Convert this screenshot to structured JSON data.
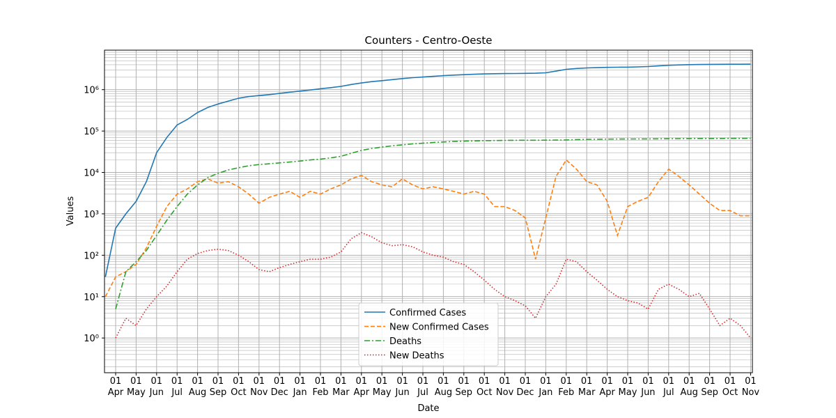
{
  "chart_data": {
    "type": "line",
    "title": "Counters - Centro-Oeste",
    "x_label": "Date",
    "y_label": "Values",
    "log_scale": true,
    "grid": true,
    "minor_grid": true,
    "legend": "lower center",
    "x": [
      "15\nMar",
      "01\nApr",
      "15\nApr",
      "01\nMay",
      "15\nMay",
      "01\nJun",
      "15\nJun",
      "01\nJul",
      "15\nJul",
      "01\nAug",
      "15\nAug",
      "01\nSep",
      "15\nSep",
      "01\nOct",
      "15\nOct",
      "01\nNov",
      "15\nNov",
      "01\nDec",
      "15\nDec",
      "01\nJan",
      "15\nJan",
      "01\nFeb",
      "15\nFeb",
      "01\nMar",
      "15\nMar",
      "01\nApr",
      "15\nApr",
      "01\nMay",
      "15\nMay",
      "01\nJun",
      "15\nJun",
      "01\nJul",
      "15\nJul",
      "01\nAug",
      "15\nAug",
      "01\nSep",
      "15\nSep",
      "01\nOct",
      "15\nOct",
      "01\nNov",
      "15\nNov",
      "01\nDec",
      "15\nDec",
      "01\nJan",
      "15\nJan",
      "01\nFeb",
      "15\nFeb",
      "01\nMar",
      "15\nMar",
      "01\nApr",
      "15\nApr",
      "01\nMay",
      "15\nMay",
      "01\nJun",
      "15\nJun",
      "01\nJul",
      "15\nJul",
      "01\nAug",
      "15\nAug",
      "01\nSep",
      "15\nSep",
      "01\nOct",
      "15\nOct",
      "01\nNov"
    ],
    "ylim": [
      0.145,
      9000000
    ],
    "yticks": [
      {
        "value": 1,
        "label": "10⁰"
      },
      {
        "value": 10,
        "label": "10¹"
      },
      {
        "value": 100,
        "label": "10²"
      },
      {
        "value": 1000,
        "label": "10³"
      },
      {
        "value": 10000,
        "label": "10⁴"
      },
      {
        "value": 100000,
        "label": "10⁵"
      },
      {
        "value": 1000000,
        "label": "10⁶"
      }
    ],
    "series": [
      {
        "name": "Confirmed Cases",
        "color": "#1f77b4",
        "style": "solid",
        "values": [
          30,
          450,
          1000,
          2000,
          6000,
          30000,
          70000,
          140000,
          190000,
          280000,
          370000,
          450000,
          530000,
          620000,
          680000,
          720000,
          760000,
          810000,
          870000,
          920000,
          980000,
          1050000,
          1120000,
          1200000,
          1330000,
          1450000,
          1560000,
          1650000,
          1750000,
          1850000,
          1950000,
          2020000,
          2100000,
          2180000,
          2250000,
          2300000,
          2350000,
          2400000,
          2430000,
          2450000,
          2460000,
          2480000,
          2500000,
          2550000,
          2800000,
          3100000,
          3250000,
          3350000,
          3400000,
          3450000,
          3480000,
          3500000,
          3550000,
          3620000,
          3750000,
          3880000,
          3950000,
          4020000,
          4050000,
          4080000,
          4100000,
          4110000,
          4120000,
          4130000
        ]
      },
      {
        "name": "New Confirmed Cases",
        "color": "#ff7f0e",
        "style": "dashed",
        "values": [
          10,
          30,
          40,
          60,
          150,
          500,
          1500,
          3000,
          4000,
          6000,
          7000,
          5500,
          6000,
          4500,
          3000,
          1800,
          2500,
          3000,
          3500,
          2500,
          3500,
          3000,
          4000,
          5000,
          7000,
          8500,
          6000,
          5000,
          4500,
          7000,
          5000,
          4000,
          4500,
          4000,
          3500,
          3000,
          3500,
          3000,
          1500,
          1500,
          1200,
          800,
          80,
          800,
          8000,
          20000,
          12000,
          6000,
          5000,
          2000,
          300,
          1500,
          2000,
          2500,
          6000,
          12000,
          8000,
          5000,
          3000,
          1800,
          1200,
          1200,
          900,
          900
        ]
      },
      {
        "name": "Deaths",
        "color": "#2ca02c",
        "style": "dashdot",
        "values": [
          null,
          5,
          40,
          70,
          130,
          300,
          700,
          1500,
          3000,
          5000,
          7500,
          9500,
          11500,
          13000,
          14500,
          15500,
          16200,
          17000,
          17800,
          18800,
          20000,
          21000,
          22500,
          24500,
          29000,
          34000,
          38000,
          41000,
          44000,
          46500,
          49000,
          51000,
          53000,
          54500,
          56000,
          57000,
          57800,
          58500,
          59000,
          59400,
          59700,
          59900,
          60000,
          60200,
          60500,
          61000,
          62000,
          62800,
          63300,
          63700,
          64000,
          64200,
          64400,
          64600,
          64900,
          65200,
          65500,
          65800,
          66000,
          66100,
          66200,
          66300,
          66400,
          66500
        ]
      },
      {
        "name": "New Deaths",
        "color": "#d62728",
        "style": "dotted",
        "values": [
          null,
          1,
          3,
          2,
          5,
          10,
          18,
          40,
          80,
          110,
          130,
          140,
          130,
          100,
          70,
          45,
          40,
          50,
          60,
          70,
          80,
          80,
          90,
          120,
          250,
          350,
          280,
          200,
          170,
          180,
          160,
          120,
          100,
          90,
          70,
          60,
          40,
          25,
          15,
          10,
          8,
          6,
          3,
          10,
          20,
          80,
          70,
          40,
          25,
          15,
          10,
          8,
          7,
          5,
          15,
          20,
          15,
          10,
          12,
          5,
          2,
          3,
          2,
          1
        ]
      }
    ]
  }
}
